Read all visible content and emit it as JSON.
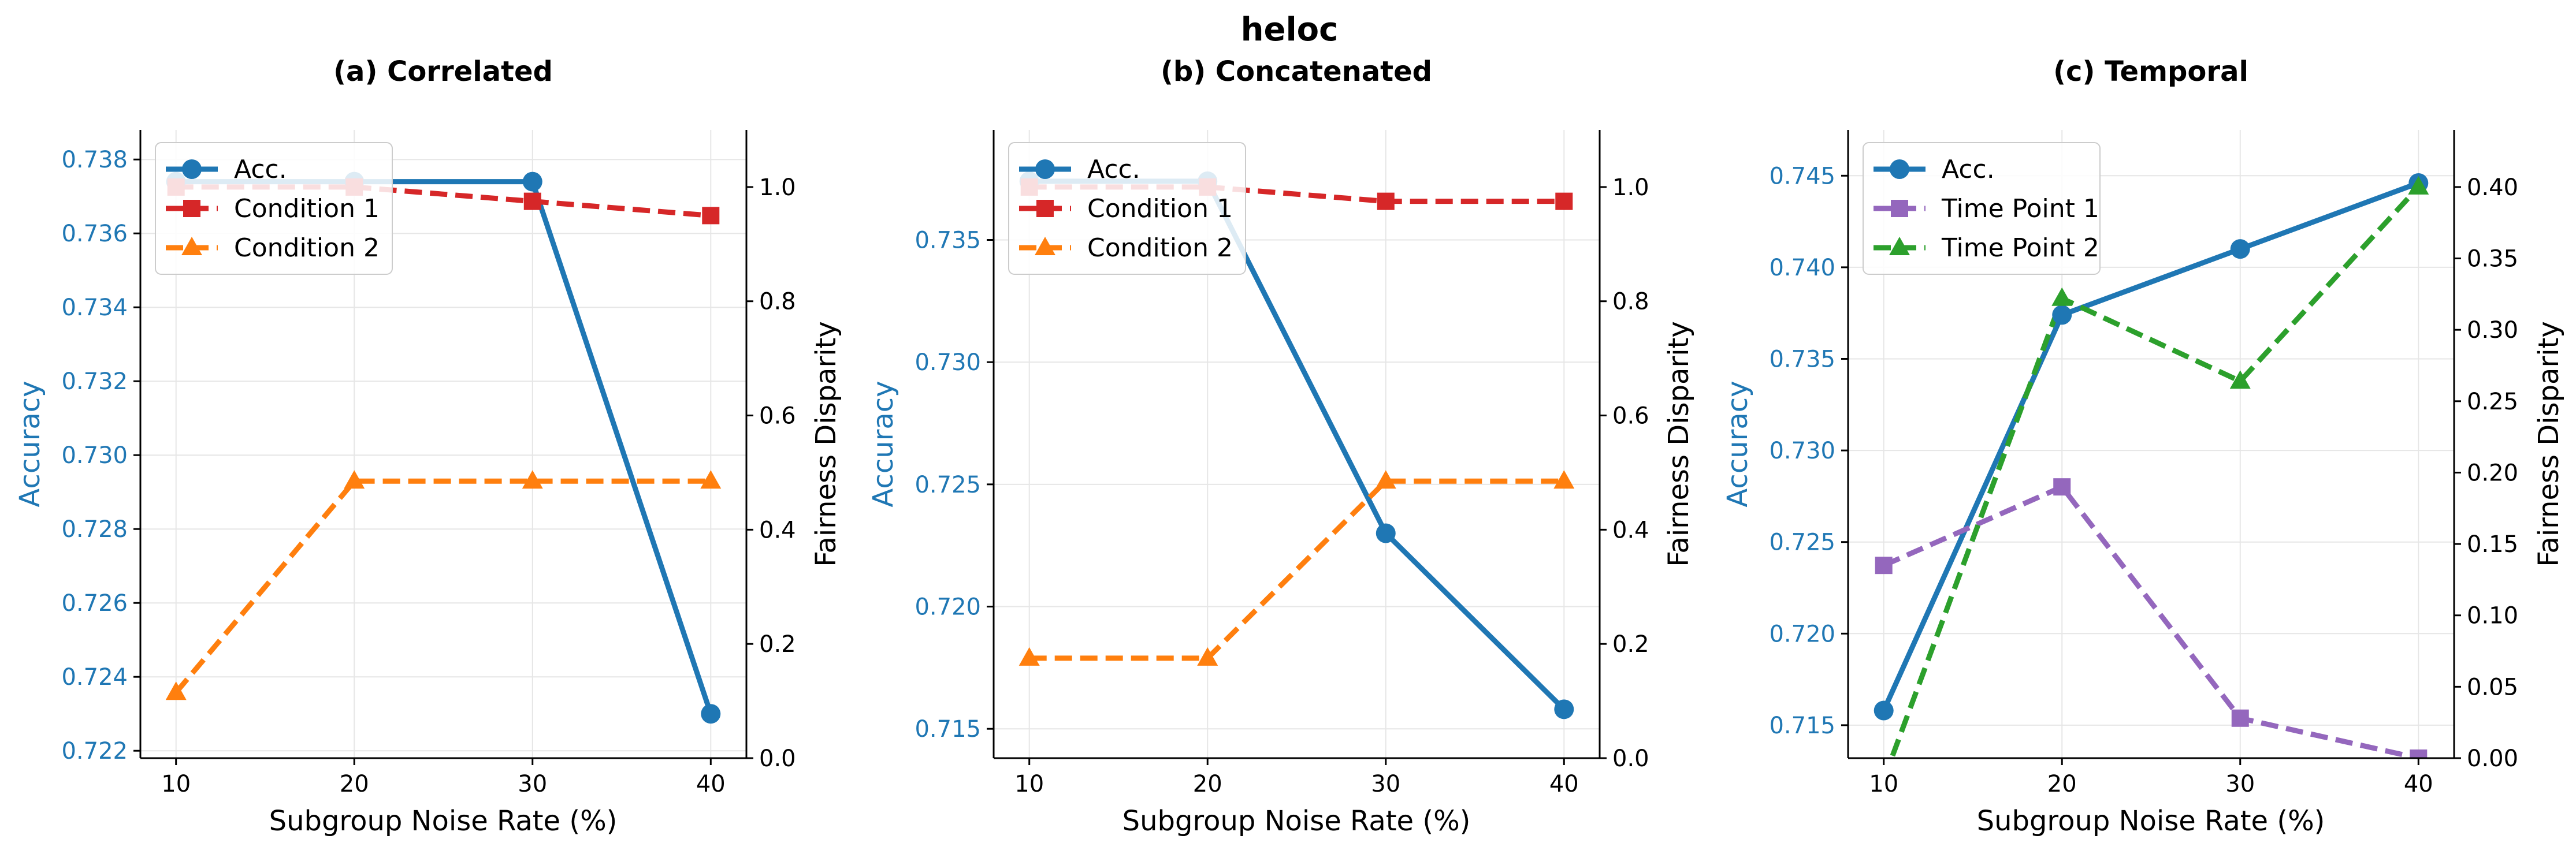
{
  "figure": {
    "title": "heloc"
  },
  "chart_data": [
    {
      "type": "line",
      "title": "(a) Correlated",
      "xlabel": "Subgroup Noise Rate (%)",
      "ylabel": "Accuracy",
      "y2label": "Fairness Disparity",
      "x": [
        10,
        20,
        30,
        40
      ],
      "xlim": [
        8,
        42
      ],
      "ylim": [
        0.7218,
        0.7388
      ],
      "yticks": [
        0.722,
        0.724,
        0.726,
        0.728,
        0.73,
        0.732,
        0.734,
        0.736,
        0.738
      ],
      "y2lim": [
        0,
        1.1
      ],
      "y2ticks": [
        0.0,
        0.2,
        0.4,
        0.6,
        0.8,
        1.0
      ],
      "series": [
        {
          "name": "Acc.",
          "axis": "left",
          "color": "#1f77b4",
          "dash": false,
          "marker": "circle",
          "values": [
            0.7374,
            0.7374,
            0.7374,
            0.723
          ]
        },
        {
          "name": "Condition 1",
          "axis": "right",
          "color": "#d62728",
          "dash": true,
          "marker": "square",
          "values": [
            1.0,
            1.0,
            0.975,
            0.95
          ]
        },
        {
          "name": "Condition 2",
          "axis": "right",
          "color": "#ff7f0e",
          "dash": true,
          "marker": "triangle",
          "values": [
            0.115,
            0.485,
            0.485,
            0.485
          ]
        }
      ],
      "legend": "top-left",
      "grid": true
    },
    {
      "type": "line",
      "title": "(b) Concatenated",
      "xlabel": "Subgroup Noise Rate (%)",
      "ylabel": "Accuracy",
      "y2label": "Fairness Disparity",
      "x": [
        10,
        20,
        30,
        40
      ],
      "xlim": [
        8,
        42
      ],
      "ylim": [
        0.7138,
        0.7395
      ],
      "yticks": [
        0.715,
        0.72,
        0.725,
        0.73,
        0.735
      ],
      "y2lim": [
        0,
        1.1
      ],
      "y2ticks": [
        0.0,
        0.2,
        0.4,
        0.6,
        0.8,
        1.0
      ],
      "series": [
        {
          "name": "Acc.",
          "axis": "left",
          "color": "#1f77b4",
          "dash": false,
          "marker": "circle",
          "values": [
            0.7374,
            0.7374,
            0.723,
            0.7158
          ]
        },
        {
          "name": "Condition 1",
          "axis": "right",
          "color": "#d62728",
          "dash": true,
          "marker": "square",
          "values": [
            1.0,
            1.0,
            0.975,
            0.975
          ]
        },
        {
          "name": "Condition 2",
          "axis": "right",
          "color": "#ff7f0e",
          "dash": true,
          "marker": "triangle",
          "values": [
            0.175,
            0.175,
            0.485,
            0.485
          ]
        }
      ],
      "legend": "top-left",
      "grid": true
    },
    {
      "type": "line",
      "title": "(c) Temporal",
      "xlabel": "Subgroup Noise Rate (%)",
      "ylabel": "Accuracy",
      "y2label": "Fairness Disparity",
      "x": [
        10,
        20,
        30,
        40
      ],
      "xlim": [
        8,
        42
      ],
      "ylim": [
        0.7132,
        0.7475
      ],
      "yticks": [
        0.715,
        0.72,
        0.725,
        0.73,
        0.735,
        0.74,
        0.745
      ],
      "y2lim": [
        0,
        0.44
      ],
      "y2ticks": [
        0.0,
        0.05,
        0.1,
        0.15,
        0.2,
        0.25,
        0.3,
        0.35,
        0.4
      ],
      "series": [
        {
          "name": "Acc.",
          "axis": "left",
          "color": "#1f77b4",
          "dash": false,
          "marker": "circle",
          "values": [
            0.7158,
            0.7374,
            0.741,
            0.7446
          ]
        },
        {
          "name": "Time Point 1",
          "axis": "right",
          "color": "#9467bd",
          "dash": true,
          "marker": "square",
          "values": [
            0.135,
            0.19,
            0.028,
            0.0
          ]
        },
        {
          "name": "Time Point 2",
          "axis": "right",
          "color": "#2ca02c",
          "dash": true,
          "marker": "triangle",
          "values": [
            -0.015,
            0.322,
            0.264,
            0.4
          ]
        }
      ],
      "legend": "top-left",
      "grid": true
    }
  ]
}
